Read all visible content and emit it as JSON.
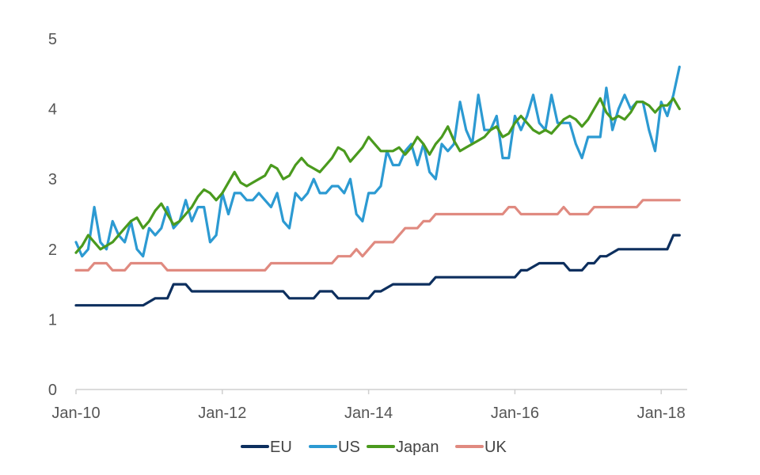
{
  "chart_data": {
    "type": "line",
    "title": "",
    "xlabel": "",
    "ylabel": "",
    "x_ticks": [
      "Jan-10",
      "Jan-12",
      "Jan-14",
      "Jan-16",
      "Jan-18"
    ],
    "y_ticks": [
      "0",
      "1",
      "2",
      "3",
      "4",
      "5"
    ],
    "xlim": [
      "2010-01",
      "2018-05"
    ],
    "ylim": [
      0,
      5
    ],
    "grid": false,
    "legend_position": "bottom",
    "colors": {
      "EU": "#0d2f5e",
      "US": "#2c9ad2",
      "Japan": "#4a9a1e",
      "UK": "#e08a80"
    },
    "series": [
      {
        "name": "EU",
        "points": [
          [
            "2010-01",
            1.2
          ],
          [
            "2010-07",
            1.2
          ],
          [
            "2010-12",
            1.2
          ],
          [
            "2011-02",
            1.3
          ],
          [
            "2011-04",
            1.3
          ],
          [
            "2011-05",
            1.5
          ],
          [
            "2011-07",
            1.5
          ],
          [
            "2011-08",
            1.4
          ],
          [
            "2012-11",
            1.4
          ],
          [
            "2012-12",
            1.3
          ],
          [
            "2013-04",
            1.3
          ],
          [
            "2013-05",
            1.4
          ],
          [
            "2013-07",
            1.4
          ],
          [
            "2013-08",
            1.3
          ],
          [
            "2014-01",
            1.3
          ],
          [
            "2014-02",
            1.4
          ],
          [
            "2014-03",
            1.4
          ],
          [
            "2014-05",
            1.5
          ],
          [
            "2014-11",
            1.5
          ],
          [
            "2014-12",
            1.6
          ],
          [
            "2016-01",
            1.6
          ],
          [
            "2016-02",
            1.7
          ],
          [
            "2016-03",
            1.7
          ],
          [
            "2016-05",
            1.8
          ],
          [
            "2016-09",
            1.8
          ],
          [
            "2016-10",
            1.7
          ],
          [
            "2016-12",
            1.7
          ],
          [
            "2017-01",
            1.8
          ],
          [
            "2017-02",
            1.8
          ],
          [
            "2017-03",
            1.9
          ],
          [
            "2017-04",
            1.9
          ],
          [
            "2017-06",
            2.0
          ],
          [
            "2018-02",
            2.0
          ],
          [
            "2018-03",
            2.2
          ],
          [
            "2018-04",
            2.2
          ]
        ]
      },
      {
        "name": "US",
        "points": [
          [
            "2010-01",
            2.1
          ],
          [
            "2010-02",
            1.9
          ],
          [
            "2010-03",
            2.0
          ],
          [
            "2010-04",
            2.6
          ],
          [
            "2010-05",
            2.1
          ],
          [
            "2010-06",
            2.0
          ],
          [
            "2010-07",
            2.4
          ],
          [
            "2010-08",
            2.2
          ],
          [
            "2010-09",
            2.1
          ],
          [
            "2010-10",
            2.4
          ],
          [
            "2010-11",
            2.0
          ],
          [
            "2010-12",
            1.9
          ],
          [
            "2011-01",
            2.3
          ],
          [
            "2011-02",
            2.2
          ],
          [
            "2011-03",
            2.3
          ],
          [
            "2011-04",
            2.6
          ],
          [
            "2011-05",
            2.3
          ],
          [
            "2011-06",
            2.4
          ],
          [
            "2011-07",
            2.7
          ],
          [
            "2011-08",
            2.4
          ],
          [
            "2011-09",
            2.6
          ],
          [
            "2011-10",
            2.6
          ],
          [
            "2011-11",
            2.1
          ],
          [
            "2011-12",
            2.2
          ],
          [
            "2012-01",
            2.8
          ],
          [
            "2012-02",
            2.5
          ],
          [
            "2012-03",
            2.8
          ],
          [
            "2012-04",
            2.8
          ],
          [
            "2012-05",
            2.7
          ],
          [
            "2012-06",
            2.7
          ],
          [
            "2012-07",
            2.8
          ],
          [
            "2012-08",
            2.7
          ],
          [
            "2012-09",
            2.6
          ],
          [
            "2012-10",
            2.8
          ],
          [
            "2012-11",
            2.4
          ],
          [
            "2012-12",
            2.3
          ],
          [
            "2013-01",
            2.8
          ],
          [
            "2013-02",
            2.7
          ],
          [
            "2013-03",
            2.8
          ],
          [
            "2013-04",
            3.0
          ],
          [
            "2013-05",
            2.8
          ],
          [
            "2013-06",
            2.8
          ],
          [
            "2013-07",
            2.9
          ],
          [
            "2013-08",
            2.9
          ],
          [
            "2013-09",
            2.8
          ],
          [
            "2013-10",
            3.0
          ],
          [
            "2013-11",
            2.5
          ],
          [
            "2013-12",
            2.4
          ],
          [
            "2014-01",
            2.8
          ],
          [
            "2014-02",
            2.8
          ],
          [
            "2014-03",
            2.9
          ],
          [
            "2014-04",
            3.4
          ],
          [
            "2014-05",
            3.2
          ],
          [
            "2014-06",
            3.2
          ],
          [
            "2014-07",
            3.4
          ],
          [
            "2014-08",
            3.5
          ],
          [
            "2014-09",
            3.2
          ],
          [
            "2014-10",
            3.5
          ],
          [
            "2014-11",
            3.1
          ],
          [
            "2014-12",
            3.0
          ],
          [
            "2015-01",
            3.5
          ],
          [
            "2015-02",
            3.4
          ],
          [
            "2015-03",
            3.5
          ],
          [
            "2015-04",
            4.1
          ],
          [
            "2015-05",
            3.7
          ],
          [
            "2015-06",
            3.5
          ],
          [
            "2015-07",
            4.2
          ],
          [
            "2015-08",
            3.7
          ],
          [
            "2015-09",
            3.7
          ],
          [
            "2015-10",
            3.9
          ],
          [
            "2015-11",
            3.3
          ],
          [
            "2015-12",
            3.3
          ],
          [
            "2016-01",
            3.9
          ],
          [
            "2016-02",
            3.7
          ],
          [
            "2016-03",
            3.9
          ],
          [
            "2016-04",
            4.2
          ],
          [
            "2016-05",
            3.8
          ],
          [
            "2016-06",
            3.7
          ],
          [
            "2016-07",
            4.2
          ],
          [
            "2016-08",
            3.8
          ],
          [
            "2016-09",
            3.8
          ],
          [
            "2016-10",
            3.8
          ],
          [
            "2016-11",
            3.5
          ],
          [
            "2016-12",
            3.3
          ],
          [
            "2017-01",
            3.6
          ],
          [
            "2017-02",
            3.6
          ],
          [
            "2017-03",
            3.6
          ],
          [
            "2017-04",
            4.3
          ],
          [
            "2017-05",
            3.7
          ],
          [
            "2017-06",
            4.0
          ],
          [
            "2017-07",
            4.2
          ],
          [
            "2017-08",
            4.0
          ],
          [
            "2017-09",
            4.1
          ],
          [
            "2017-10",
            4.1
          ],
          [
            "2017-11",
            3.7
          ],
          [
            "2017-12",
            3.4
          ],
          [
            "2018-01",
            4.1
          ],
          [
            "2018-02",
            3.9
          ],
          [
            "2018-03",
            4.2
          ],
          [
            "2018-04",
            4.6
          ]
        ]
      },
      {
        "name": "Japan",
        "points": [
          [
            "2010-01",
            1.95
          ],
          [
            "2010-02",
            2.05
          ],
          [
            "2010-03",
            2.2
          ],
          [
            "2010-04",
            2.1
          ],
          [
            "2010-05",
            2.0
          ],
          [
            "2010-06",
            2.05
          ],
          [
            "2010-07",
            2.1
          ],
          [
            "2010-08",
            2.2
          ],
          [
            "2010-09",
            2.3
          ],
          [
            "2010-10",
            2.4
          ],
          [
            "2010-11",
            2.45
          ],
          [
            "2010-12",
            2.3
          ],
          [
            "2011-01",
            2.4
          ],
          [
            "2011-02",
            2.55
          ],
          [
            "2011-03",
            2.65
          ],
          [
            "2011-04",
            2.5
          ],
          [
            "2011-05",
            2.35
          ],
          [
            "2011-06",
            2.4
          ],
          [
            "2011-07",
            2.5
          ],
          [
            "2011-08",
            2.6
          ],
          [
            "2011-09",
            2.75
          ],
          [
            "2011-10",
            2.85
          ],
          [
            "2011-11",
            2.8
          ],
          [
            "2011-12",
            2.7
          ],
          [
            "2012-01",
            2.8
          ],
          [
            "2012-02",
            2.95
          ],
          [
            "2012-03",
            3.1
          ],
          [
            "2012-04",
            2.95
          ],
          [
            "2012-05",
            2.9
          ],
          [
            "2012-06",
            2.95
          ],
          [
            "2012-07",
            3.0
          ],
          [
            "2012-08",
            3.05
          ],
          [
            "2012-09",
            3.2
          ],
          [
            "2012-10",
            3.15
          ],
          [
            "2012-11",
            3.0
          ],
          [
            "2012-12",
            3.05
          ],
          [
            "2013-01",
            3.2
          ],
          [
            "2013-02",
            3.3
          ],
          [
            "2013-03",
            3.2
          ],
          [
            "2013-04",
            3.15
          ],
          [
            "2013-05",
            3.1
          ],
          [
            "2013-06",
            3.2
          ],
          [
            "2013-07",
            3.3
          ],
          [
            "2013-08",
            3.45
          ],
          [
            "2013-09",
            3.4
          ],
          [
            "2013-10",
            3.25
          ],
          [
            "2013-11",
            3.35
          ],
          [
            "2013-12",
            3.45
          ],
          [
            "2014-01",
            3.6
          ],
          [
            "2014-02",
            3.5
          ],
          [
            "2014-03",
            3.4
          ],
          [
            "2014-04",
            3.4
          ],
          [
            "2014-05",
            3.4
          ],
          [
            "2014-06",
            3.45
          ],
          [
            "2014-07",
            3.35
          ],
          [
            "2014-08",
            3.45
          ],
          [
            "2014-09",
            3.6
          ],
          [
            "2014-10",
            3.5
          ],
          [
            "2014-11",
            3.35
          ],
          [
            "2014-12",
            3.5
          ],
          [
            "2015-01",
            3.6
          ],
          [
            "2015-02",
            3.75
          ],
          [
            "2015-03",
            3.55
          ],
          [
            "2015-04",
            3.4
          ],
          [
            "2015-05",
            3.45
          ],
          [
            "2015-06",
            3.5
          ],
          [
            "2015-07",
            3.55
          ],
          [
            "2015-08",
            3.6
          ],
          [
            "2015-09",
            3.7
          ],
          [
            "2015-10",
            3.75
          ],
          [
            "2015-11",
            3.6
          ],
          [
            "2015-12",
            3.65
          ],
          [
            "2016-01",
            3.8
          ],
          [
            "2016-02",
            3.9
          ],
          [
            "2016-03",
            3.8
          ],
          [
            "2016-04",
            3.7
          ],
          [
            "2016-05",
            3.65
          ],
          [
            "2016-06",
            3.7
          ],
          [
            "2016-07",
            3.65
          ],
          [
            "2016-08",
            3.75
          ],
          [
            "2016-09",
            3.85
          ],
          [
            "2016-10",
            3.9
          ],
          [
            "2016-11",
            3.85
          ],
          [
            "2016-12",
            3.75
          ],
          [
            "2017-01",
            3.85
          ],
          [
            "2017-02",
            4.0
          ],
          [
            "2017-03",
            4.15
          ],
          [
            "2017-04",
            3.95
          ],
          [
            "2017-05",
            3.85
          ],
          [
            "2017-06",
            3.9
          ],
          [
            "2017-07",
            3.85
          ],
          [
            "2017-08",
            3.95
          ],
          [
            "2017-09",
            4.1
          ],
          [
            "2017-10",
            4.1
          ],
          [
            "2017-11",
            4.05
          ],
          [
            "2017-12",
            3.95
          ],
          [
            "2018-01",
            4.05
          ],
          [
            "2018-02",
            4.05
          ],
          [
            "2018-03",
            4.15
          ],
          [
            "2018-04",
            4.0
          ]
        ]
      },
      {
        "name": "UK",
        "points": [
          [
            "2010-01",
            1.7
          ],
          [
            "2010-03",
            1.7
          ],
          [
            "2010-04",
            1.8
          ],
          [
            "2010-06",
            1.8
          ],
          [
            "2010-07",
            1.7
          ],
          [
            "2010-09",
            1.7
          ],
          [
            "2010-10",
            1.8
          ],
          [
            "2011-03",
            1.8
          ],
          [
            "2011-04",
            1.7
          ],
          [
            "2012-08",
            1.7
          ],
          [
            "2012-09",
            1.8
          ],
          [
            "2013-07",
            1.8
          ],
          [
            "2013-08",
            1.9
          ],
          [
            "2013-10",
            1.9
          ],
          [
            "2013-11",
            2.0
          ],
          [
            "2013-12",
            1.9
          ],
          [
            "2014-01",
            2.0
          ],
          [
            "2014-02",
            2.1
          ],
          [
            "2014-05",
            2.1
          ],
          [
            "2014-06",
            2.2
          ],
          [
            "2014-07",
            2.3
          ],
          [
            "2014-09",
            2.3
          ],
          [
            "2014-10",
            2.4
          ],
          [
            "2014-11",
            2.4
          ],
          [
            "2014-12",
            2.5
          ],
          [
            "2015-11",
            2.5
          ],
          [
            "2015-12",
            2.6
          ],
          [
            "2016-01",
            2.6
          ],
          [
            "2016-02",
            2.5
          ],
          [
            "2016-08",
            2.5
          ],
          [
            "2016-09",
            2.6
          ],
          [
            "2016-10",
            2.5
          ],
          [
            "2017-01",
            2.5
          ],
          [
            "2017-02",
            2.6
          ],
          [
            "2017-09",
            2.6
          ],
          [
            "2017-10",
            2.7
          ],
          [
            "2018-04",
            2.7
          ]
        ]
      }
    ]
  }
}
